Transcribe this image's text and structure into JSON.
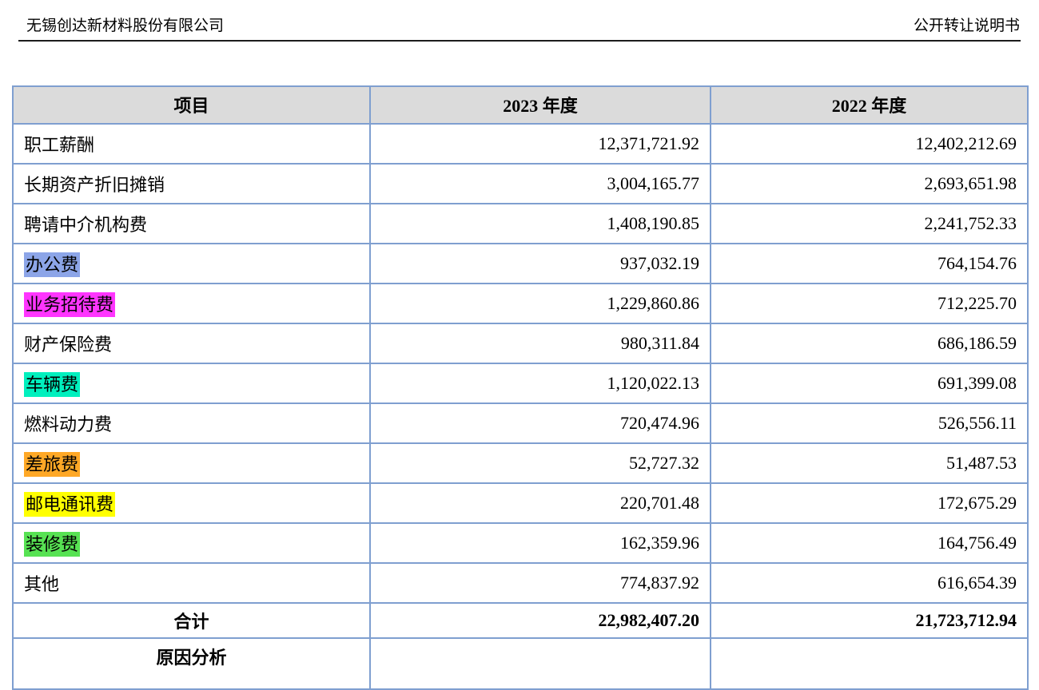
{
  "page_header": {
    "company": "无锡创达新材料股份有限公司",
    "doc_title": "公开转让说明书"
  },
  "colors": {
    "table_border": "#7f9fd0",
    "header_row_bg": "#dbdbdb",
    "rule_color": "#1c1c1c"
  },
  "table": {
    "columns": [
      "项目",
      "2023 年度",
      "2022 年度"
    ],
    "rows": [
      {
        "label": "职工薪酬",
        "highlight": null,
        "v2023": "12,371,721.92",
        "v2022": "12,402,212.69"
      },
      {
        "label": "长期资产折旧摊销",
        "highlight": null,
        "v2023": "3,004,165.77",
        "v2022": "2,693,651.98"
      },
      {
        "label": "聘请中介机构费",
        "highlight": null,
        "v2023": "1,408,190.85",
        "v2022": "2,241,752.33"
      },
      {
        "label": "办公费",
        "highlight": "#8ca5e8",
        "v2023": "937,032.19",
        "v2022": "764,154.76"
      },
      {
        "label": "业务招待费",
        "highlight": "#ff35ff",
        "v2023": "1,229,860.86",
        "v2022": "712,225.70"
      },
      {
        "label": "财产保险费",
        "highlight": null,
        "v2023": "980,311.84",
        "v2022": "686,186.59"
      },
      {
        "label": "车辆费",
        "highlight": "#00f0be",
        "v2023": "1,120,022.13",
        "v2022": "691,399.08"
      },
      {
        "label": "燃料动力费",
        "highlight": null,
        "v2023": "720,474.96",
        "v2022": "526,556.11"
      },
      {
        "label": "差旅费",
        "highlight": "#ffa826",
        "v2023": "52,727.32",
        "v2022": "51,487.53"
      },
      {
        "label": "邮电通讯费",
        "highlight": "#ffff00",
        "v2023": "220,701.48",
        "v2022": "172,675.29"
      },
      {
        "label": "装修费",
        "highlight": "#57e253",
        "v2023": "162,359.96",
        "v2022": "164,756.49"
      },
      {
        "label": "其他",
        "highlight": null,
        "v2023": "774,837.92",
        "v2022": "616,654.39"
      }
    ],
    "total_row": {
      "label": "合计",
      "v2023": "22,982,407.20",
      "v2022": "21,723,712.94"
    },
    "partial_row_label": "原因分析"
  }
}
